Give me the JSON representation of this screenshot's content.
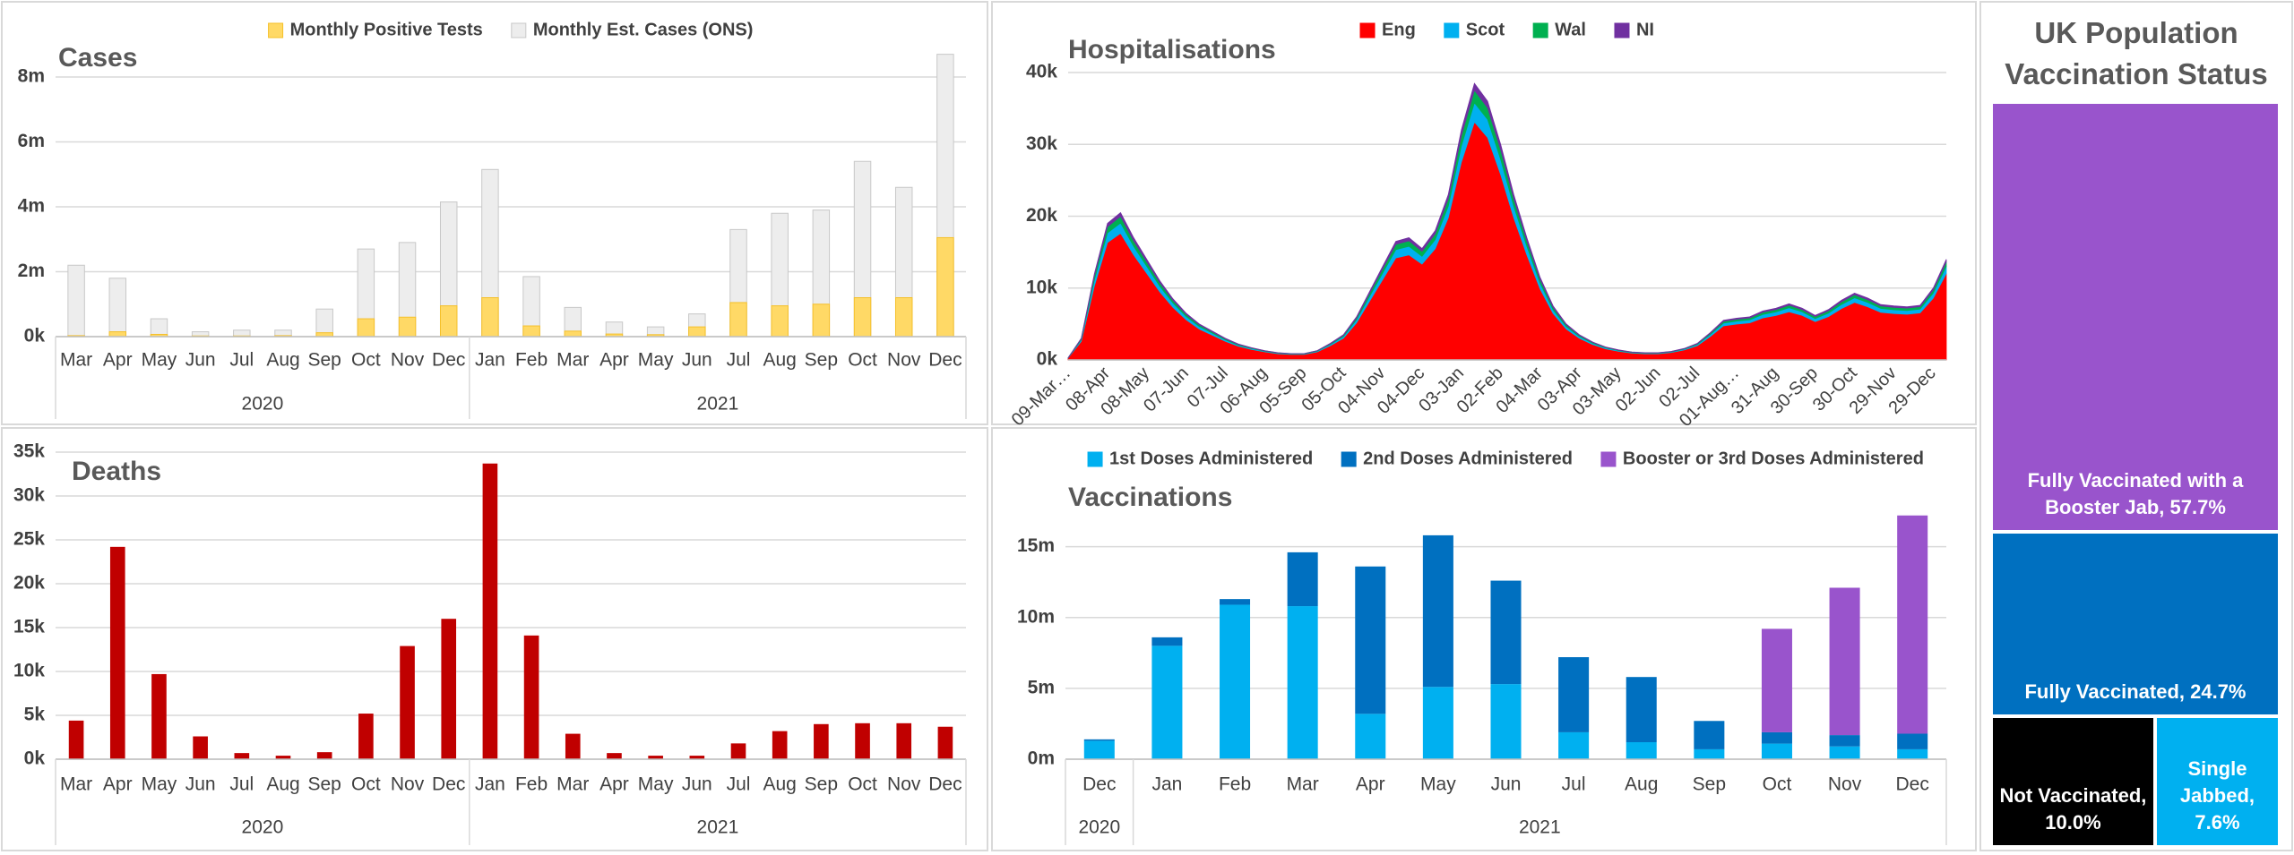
{
  "chart_data": [
    {
      "type": "bar",
      "bar_mode": "overlap",
      "title": "Cases",
      "legend": "top",
      "categories": [
        "Mar",
        "Apr",
        "May",
        "Jun",
        "Jul",
        "Aug",
        "Sep",
        "Oct",
        "Nov",
        "Dec",
        "Jan",
        "Feb",
        "Mar",
        "Apr",
        "May",
        "Jun",
        "Jul",
        "Aug",
        "Sep",
        "Oct",
        "Nov",
        "Dec"
      ],
      "category_groups": [
        {
          "label": "2020",
          "span": 10
        },
        {
          "label": "2021",
          "span": 12
        }
      ],
      "series": [
        {
          "name": "Monthly Positive Tests",
          "color": "#ffd966",
          "edgecolor": "#f5c02a",
          "values": [
            30000,
            150000,
            70000,
            20000,
            20000,
            30000,
            120000,
            550000,
            600000,
            950000,
            1200000,
            330000,
            170000,
            80000,
            60000,
            300000,
            1050000,
            950000,
            1000000,
            1200000,
            1200000,
            3050000
          ]
        },
        {
          "name": "Monthly Est. Cases (ONS)",
          "color": "#ededed",
          "edgecolor": "#c8c8c8",
          "values": [
            2200000,
            1800000,
            550000,
            150000,
            200000,
            200000,
            850000,
            2700000,
            2900000,
            4150000,
            5150000,
            1850000,
            900000,
            450000,
            300000,
            700000,
            3300000,
            3800000,
            3900000,
            5400000,
            4600000,
            8700000
          ]
        }
      ],
      "ylim": [
        0,
        8800000
      ],
      "yticks": [
        {
          "value": 0,
          "label": "0k"
        },
        {
          "value": 2000000,
          "label": "2m"
        },
        {
          "value": 4000000,
          "label": "4m"
        },
        {
          "value": 6000000,
          "label": "6m"
        },
        {
          "value": 8000000,
          "label": "8m"
        }
      ],
      "grid": true
    },
    {
      "type": "area",
      "stacked": true,
      "title": "Hospitalisations",
      "legend": "top",
      "categories": [
        "09-Mar…",
        null,
        null,
        "08-Apr",
        null,
        null,
        "08-May",
        null,
        null,
        "07-Jun",
        null,
        null,
        "07-Jul",
        null,
        null,
        "06-Aug",
        null,
        null,
        "05-Sep",
        null,
        null,
        "05-Oct",
        null,
        null,
        "04-Nov",
        null,
        null,
        "04-Dec",
        null,
        null,
        "03-Jan",
        null,
        null,
        "02-Feb",
        null,
        null,
        "04-Mar",
        null,
        null,
        "03-Apr",
        null,
        null,
        "03-May",
        null,
        null,
        "02-Jun",
        null,
        null,
        "02-Jul",
        null,
        null,
        "01-Aug…",
        null,
        null,
        "31-Aug",
        null,
        null,
        "30-Sep",
        null,
        null,
        "30-Oct",
        null,
        null,
        "29-Nov",
        null,
        null,
        "29-Dec",
        null
      ],
      "series": [
        {
          "name": "Eng",
          "color": "#ff0000",
          "values": [
            260,
            2580,
            10320,
            16340,
            17630,
            14620,
            12040,
            9460,
            7310,
            5590,
            4300,
            3440,
            2580,
            1890,
            1460,
            1120,
            860,
            770,
            770,
            1120,
            1980,
            3010,
            5160,
            8170,
            11180,
            14190,
            14620,
            13330,
            15480,
            19780,
            27520,
            33110,
            30960,
            25800,
            19780,
            14620,
            9890,
            6450,
            4300,
            3010,
            2150,
            1550,
            1200,
            950,
            860,
            860,
            1030,
            1380,
            1980,
            3270,
            4730,
            4990,
            5160,
            5850,
            6190,
            6710,
            6190,
            5330,
            6020,
            7140,
            8000,
            7400,
            6620,
            6450,
            6360,
            6540,
            8600,
            12040
          ]
        },
        {
          "name": "Scot",
          "color": "#00b0f0",
          "values": [
            20,
            210,
            840,
            1330,
            1440,
            1190,
            980,
            770,
            600,
            460,
            350,
            280,
            210,
            150,
            120,
            90,
            70,
            60,
            60,
            90,
            160,
            250,
            420,
            670,
            910,
            1160,
            1190,
            1090,
            1260,
            1610,
            2240,
            2700,
            2520,
            2100,
            1610,
            1190,
            810,
            530,
            350,
            250,
            180,
            130,
            100,
            80,
            70,
            70,
            80,
            110,
            160,
            270,
            390,
            410,
            420,
            480,
            500,
            550,
            500,
            430,
            490,
            580,
            650,
            600,
            540,
            530,
            520,
            530,
            700,
            980
          ]
        },
        {
          "name": "Wal",
          "color": "#00b050",
          "values": [
            10,
            140,
            540,
            860,
            920,
            770,
            630,
            500,
            380,
            290,
            230,
            180,
            140,
            100,
            80,
            60,
            50,
            40,
            40,
            60,
            100,
            160,
            270,
            430,
            590,
            740,
            770,
            700,
            810,
            1040,
            1440,
            1730,
            1620,
            1350,
            1040,
            770,
            520,
            340,
            230,
            160,
            110,
            80,
            60,
            50,
            50,
            50,
            50,
            70,
            100,
            170,
            250,
            260,
            270,
            310,
            320,
            350,
            320,
            280,
            320,
            370,
            420,
            390,
            350,
            340,
            330,
            340,
            450,
            630
          ]
        },
        {
          "name": "NI",
          "color": "#7030a0",
          "values": [
            10,
            70,
            300,
            480,
            510,
            430,
            350,
            280,
            210,
            160,
            130,
            100,
            70,
            60,
            40,
            30,
            30,
            20,
            20,
            30,
            60,
            90,
            150,
            240,
            330,
            410,
            430,
            390,
            450,
            580,
            800,
            960,
            900,
            750,
            580,
            430,
            290,
            190,
            130,
            90,
            60,
            50,
            40,
            30,
            30,
            30,
            30,
            40,
            60,
            100,
            140,
            150,
            150,
            170,
            180,
            200,
            180,
            160,
            180,
            210,
            230,
            220,
            190,
            190,
            190,
            190,
            250,
            350
          ]
        }
      ],
      "ylim": [
        0,
        42000
      ],
      "yticks": [
        {
          "value": 0,
          "label": "0k"
        },
        {
          "value": 10000,
          "label": "10k"
        },
        {
          "value": 20000,
          "label": "20k"
        },
        {
          "value": 30000,
          "label": "30k"
        },
        {
          "value": 40000,
          "label": "40k"
        }
      ],
      "grid": true
    },
    {
      "type": "bar",
      "title": "Deaths",
      "categories": [
        "Mar",
        "Apr",
        "May",
        "Jun",
        "Jul",
        "Aug",
        "Sep",
        "Oct",
        "Nov",
        "Dec",
        "Jan",
        "Feb",
        "Mar",
        "Apr",
        "May",
        "Jun",
        "Jul",
        "Aug",
        "Sep",
        "Oct",
        "Nov",
        "Dec"
      ],
      "category_groups": [
        {
          "label": "2020",
          "span": 10
        },
        {
          "label": "2021",
          "span": 12
        }
      ],
      "values": [
        4400,
        24200,
        9700,
        2600,
        700,
        400,
        800,
        5200,
        12900,
        16000,
        33700,
        14100,
        2900,
        700,
        400,
        400,
        1800,
        3200,
        4000,
        4100,
        4100,
        3700
      ],
      "color": "#c00000",
      "ylim": [
        0,
        35000
      ],
      "yticks": [
        {
          "value": 0,
          "label": "0k"
        },
        {
          "value": 5000,
          "label": "5k"
        },
        {
          "value": 10000,
          "label": "10k"
        },
        {
          "value": 15000,
          "label": "15k"
        },
        {
          "value": 20000,
          "label": "20k"
        },
        {
          "value": 25000,
          "label": "25k"
        },
        {
          "value": 30000,
          "label": "30k"
        },
        {
          "value": 35000,
          "label": "35k"
        }
      ],
      "grid": true
    },
    {
      "type": "bar",
      "bar_mode": "stacked",
      "title": "Vaccinations",
      "legend": "top",
      "categories": [
        "Dec",
        "Jan",
        "Feb",
        "Mar",
        "Apr",
        "May",
        "Jun",
        "Jul",
        "Aug",
        "Sep",
        "Oct",
        "Nov",
        "Dec"
      ],
      "category_groups": [
        {
          "label": "2020",
          "span": 1
        },
        {
          "label": "2021",
          "span": 12
        }
      ],
      "series": [
        {
          "name": "1st Doses Administered",
          "color": "#00b0f0",
          "values": [
            1300000,
            8000000,
            10900000,
            10800000,
            3200000,
            5100000,
            5300000,
            1900000,
            1200000,
            700000,
            1100000,
            900000,
            700000
          ]
        },
        {
          "name": "2nd Doses Administered",
          "color": "#0070c0",
          "values": [
            100000,
            600000,
            400000,
            3800000,
            10400000,
            10700000,
            7300000,
            5300000,
            4600000,
            2000000,
            800000,
            800000,
            1100000
          ]
        },
        {
          "name": "Booster or 3rd Doses Administered",
          "color": "#9954cc",
          "values": [
            0,
            0,
            0,
            0,
            0,
            0,
            0,
            0,
            0,
            0,
            7300000,
            10400000,
            15400000
          ]
        }
      ],
      "ylim": [
        0,
        17500000
      ],
      "yticks": [
        {
          "value": 0,
          "label": "0m"
        },
        {
          "value": 5000000,
          "label": "5m"
        },
        {
          "value": 10000000,
          "label": "10m"
        },
        {
          "value": 15000000,
          "label": "15m"
        }
      ],
      "grid": true
    },
    {
      "type": "treemap",
      "title": "UK Population Vaccination Status",
      "values": [
        57.7,
        24.7,
        10.0,
        7.6
      ],
      "value_labels": [
        "Fully Vaccinated with a Booster Jab, 57.7%",
        "Fully Vaccinated, 24.7%",
        "Not Vaccinated, 10.0%",
        "Single Jabbed, 7.6%"
      ],
      "colors": [
        "#9954cc",
        "#0070c0",
        "#000000",
        "#00b0f0"
      ]
    }
  ]
}
